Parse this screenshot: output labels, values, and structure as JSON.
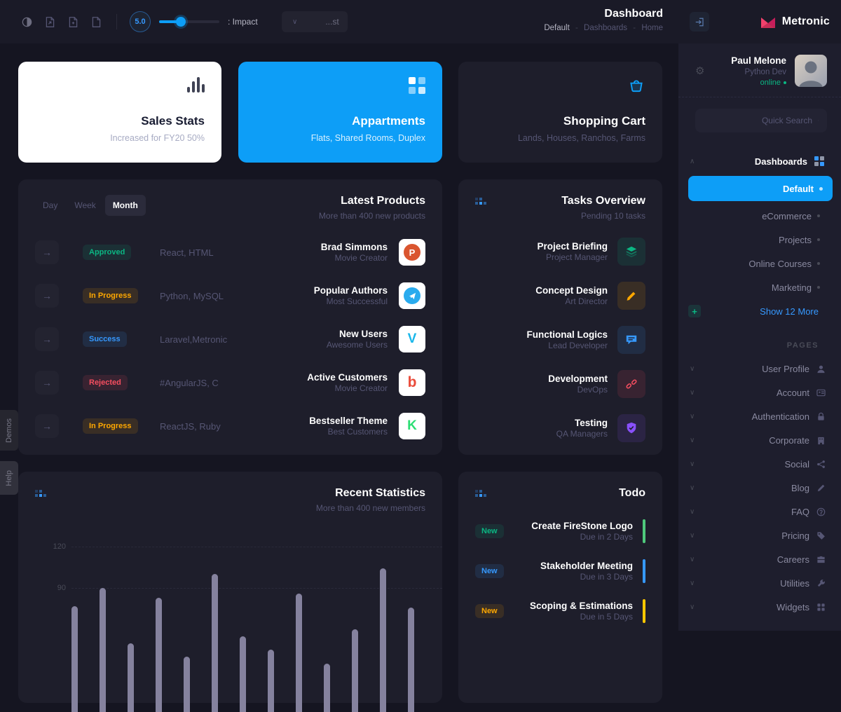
{
  "icons": {
    "arrow_right": "→",
    "chevron_down": "∨",
    "chevron_up": "∧",
    "plus": "+",
    "gear": "⚙"
  },
  "header": {
    "title": "Dashboard",
    "breadcrumb": [
      "Default",
      "Dashboards",
      "Home"
    ],
    "crumb_separator": "-",
    "rating": "5.0",
    "impact_label": ": Impact",
    "filter_value": "...st",
    "brand": "Metronic"
  },
  "stat_cards": {
    "sales": {
      "title": "Sales Stats",
      "subtitle": "Increased for FY20 50%"
    },
    "apartments": {
      "title": "Appartments",
      "subtitle": "Flats, Shared Rooms, Duplex"
    },
    "cart": {
      "title": "Shopping Cart",
      "subtitle": "Lands, Houses, Ranchos, Farms"
    }
  },
  "latest_products": {
    "title": "Latest Products",
    "subtitle": "More than 400 new products",
    "tabs": [
      "Day",
      "Week",
      "Month"
    ],
    "active_tab": "Month",
    "rows": [
      {
        "status": "Approved",
        "tech": "React, HTML",
        "name": "Brad Simmons",
        "role": "Movie Creator",
        "app": "producthunt",
        "app_letter": "P"
      },
      {
        "status": "In Progress",
        "tech": "Python, MySQL",
        "name": "Popular Authors",
        "role": "Most Successful",
        "app": "telegram",
        "app_letter": ""
      },
      {
        "status": "Success",
        "tech": "Laravel,Metronic",
        "name": "New Users",
        "role": "Awesome Users",
        "app": "vimeo",
        "app_letter": "V"
      },
      {
        "status": "Rejected",
        "tech": "#AngularJS, C",
        "name": "Active Customers",
        "role": "Movie Creator",
        "app": "bing",
        "app_letter": "b"
      },
      {
        "status": "In Progress",
        "tech": "ReactJS, Ruby",
        "name": "Bestseller Theme",
        "role": "Best Customers",
        "app": "kickstarter",
        "app_letter": "K"
      }
    ]
  },
  "tasks": {
    "title": "Tasks Overview",
    "subtitle": "Pending 10 tasks",
    "items": [
      {
        "title": "Project Briefing",
        "role": "Project Manager",
        "icon": "layers-icon",
        "color": "#0bb783"
      },
      {
        "title": "Concept Design",
        "role": "Art Director",
        "icon": "pencil-icon",
        "color": "#ffa800"
      },
      {
        "title": "Functional Logics",
        "role": "Lead Developer",
        "icon": "chat-icon",
        "color": "#3699ff"
      },
      {
        "title": "Development",
        "role": "DevOps",
        "icon": "broken-link-icon",
        "color": "#f64e60"
      },
      {
        "title": "Testing",
        "role": "QA Managers",
        "icon": "shield-icon",
        "color": "#8950fc"
      }
    ]
  },
  "stats": {
    "title": "Recent Statistics",
    "subtitle": "More than 400 new members",
    "chart_data": {
      "type": "bar",
      "values": [
        77,
        90,
        50,
        83,
        40,
        100,
        55,
        45,
        86,
        35,
        60,
        104,
        76
      ],
      "yticks": [
        90,
        120
      ],
      "bar_color": "#85829e",
      "grid": "dashed",
      "note_axis": "bottom of chart cropped by viewport"
    }
  },
  "todo": {
    "title": "Todo",
    "items": [
      {
        "badge": "New",
        "title": "Create FireStone Logo",
        "due": "Due in 2 Days",
        "color": "green"
      },
      {
        "badge": "New",
        "title": "Stakeholder Meeting",
        "due": "Due in 3 Days",
        "color": "blue"
      },
      {
        "badge": "New",
        "title": "Scoping & Estimations",
        "due": "Due in 5 Days",
        "color": "yellow"
      }
    ]
  },
  "sidebar": {
    "user": {
      "name": "Paul Melone",
      "role": "Python Dev",
      "status": "online"
    },
    "search_placeholder": "Quick Search",
    "dashboards": {
      "label": "Dashboards",
      "items": [
        {
          "label": "Default",
          "active": true
        },
        {
          "label": "eCommerce"
        },
        {
          "label": "Projects"
        },
        {
          "label": "Online Courses"
        },
        {
          "label": "Marketing"
        }
      ],
      "show_more": "Show 12 More"
    },
    "pages": {
      "label": "PAGES",
      "items": [
        {
          "label": "User Profile",
          "icon": "user-icon"
        },
        {
          "label": "Account",
          "icon": "id-card-icon"
        },
        {
          "label": "Authentication",
          "icon": "lock-icon"
        },
        {
          "label": "Corporate",
          "icon": "building-icon"
        },
        {
          "label": "Social",
          "icon": "share-icon"
        },
        {
          "label": "Blog",
          "icon": "pen-icon"
        },
        {
          "label": "FAQ",
          "icon": "question-icon"
        },
        {
          "label": "Pricing",
          "icon": "tag-icon"
        },
        {
          "label": "Careers",
          "icon": "briefcase-icon"
        },
        {
          "label": "Utilities",
          "icon": "wrench-icon"
        },
        {
          "label": "Widgets",
          "icon": "grid-icon"
        }
      ]
    }
  },
  "edge_tabs": [
    "Demos",
    "Help"
  ],
  "colors": {
    "primary": "#0d9ef7",
    "success": "#0bb783",
    "warning": "#ffa800",
    "info": "#3699ff",
    "danger": "#f64e60",
    "purple": "#8950fc"
  }
}
